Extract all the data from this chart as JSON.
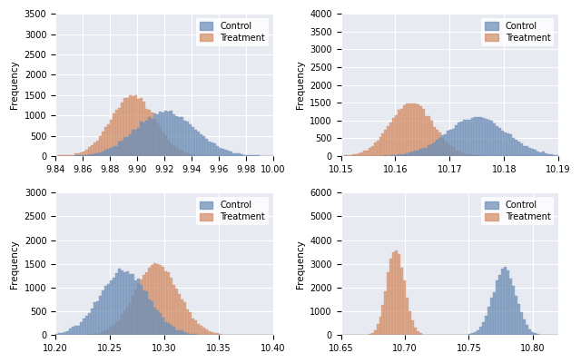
{
  "subplots": [
    {
      "control_mean": 9.921,
      "control_std": 0.022,
      "treatment_mean": 9.897,
      "treatment_std": 0.016,
      "xlim": [
        9.84,
        10.0
      ],
      "xticks": [
        9.84,
        9.86,
        9.88,
        9.9,
        9.92,
        9.94,
        9.96,
        9.98,
        10.0
      ],
      "ylim": [
        0,
        3500
      ],
      "yticks": [
        0,
        500,
        1000,
        1500,
        2000,
        2500,
        3000,
        3500
      ],
      "n_samples": 30000,
      "bins": 80
    },
    {
      "control_mean": 10.175,
      "control_std": 0.0055,
      "treatment_mean": 10.163,
      "treatment_std": 0.004,
      "xlim": [
        10.15,
        10.19
      ],
      "xticks": [
        10.15,
        10.16,
        10.17,
        10.18,
        10.19
      ],
      "ylim": [
        0,
        4000
      ],
      "yticks": [
        0,
        500,
        1000,
        1500,
        2000,
        2500,
        3000,
        3500,
        4000
      ],
      "n_samples": 30000,
      "bins": 80
    },
    {
      "control_mean": 10.263,
      "control_std": 0.022,
      "treatment_mean": 10.293,
      "treatment_std": 0.02,
      "xlim": [
        10.2,
        10.4
      ],
      "xticks": [
        10.2,
        10.25,
        10.3,
        10.35,
        10.4
      ],
      "ylim": [
        0,
        3000
      ],
      "yticks": [
        0,
        500,
        1000,
        1500,
        2000,
        2500,
        3000
      ],
      "n_samples": 30000,
      "bins": 80
    },
    {
      "control_mean": 10.778,
      "control_std": 0.009,
      "treatment_mean": 10.693,
      "treatment_std": 0.007,
      "xlim": [
        10.65,
        10.82
      ],
      "xticks": [
        10.65,
        10.7,
        10.75,
        10.8
      ],
      "ylim": [
        0,
        6000
      ],
      "yticks": [
        0,
        1000,
        2000,
        3000,
        4000,
        5000,
        6000
      ],
      "n_samples": 30000,
      "bins": 80
    }
  ],
  "control_color": "#7090b8",
  "treatment_color": "#d4906a",
  "bg_color": "#e8eaf2",
  "alpha": 0.75,
  "ylabel": "Frequency",
  "legend_labels": [
    "Control",
    "Treatment"
  ],
  "figsize": [
    6.4,
    4.0
  ],
  "dpi": 100
}
